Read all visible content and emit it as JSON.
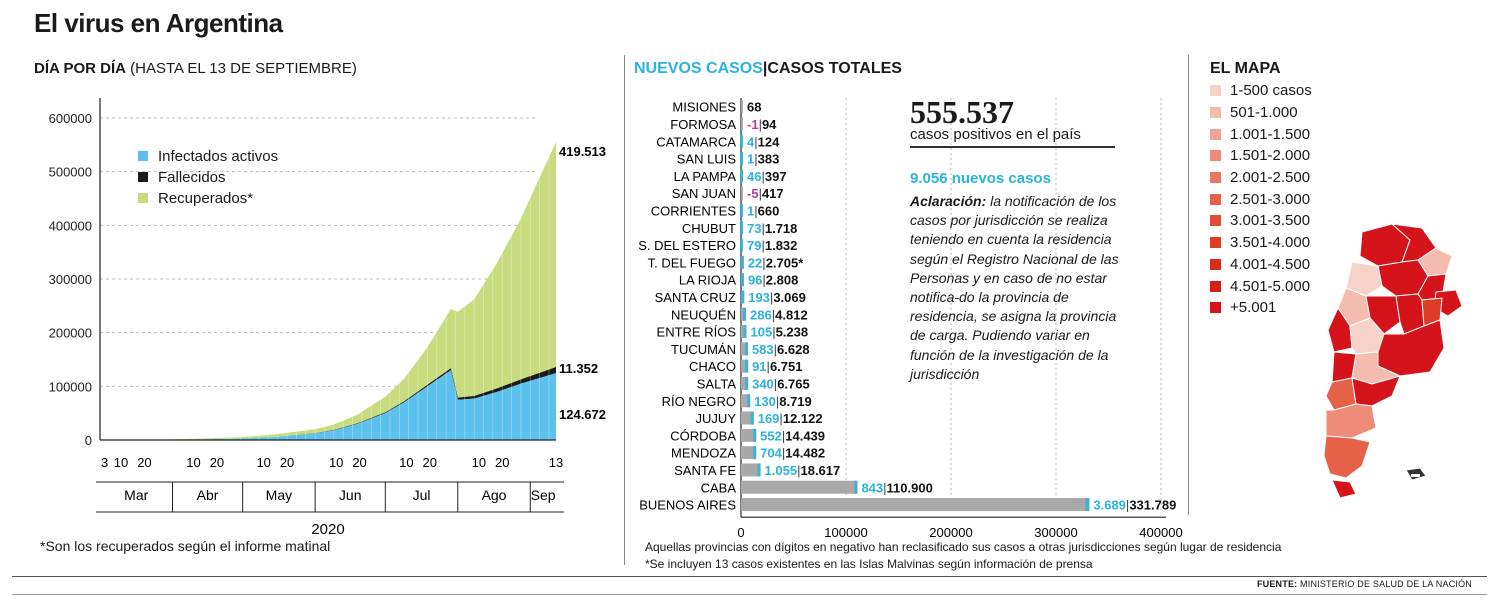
{
  "title": "El virus en Argentina",
  "left_panel": {
    "subtitle_bold": "DÍA POR DÍA",
    "subtitle_rest": " (HASTA EL 13 DE SEPTIEMBRE)",
    "year": "2020",
    "footnote": "*Son los recuperados según el informe matinal"
  },
  "middle_panel": {
    "header_new": "NUEVOS CASOS",
    "header_sep": "|",
    "header_total": "CASOS TOTALES",
    "total_cases": "555.537",
    "total_label": "casos positivos en el país",
    "new_cases": "9.056 nuevos casos",
    "note_bold": "Aclaración:",
    "note_text": " la notificación de los casos por jurisdicción se realiza teniendo en cuenta la residencia según el Registro Nacional de las Personas y en caso de no estar notifica-do la provincia de residencia, se asigna la provincia de carga. Pudiendo variar en función de la investigación de la jurisdicción",
    "footnote1": "Aquellas provincias con dígitos en negativo han reclasificado sus casos a otras jurisdicciones según lugar de residencia",
    "footnote2": "*Se incluyen 13 casos existentes en las Islas Malvinas según información de prensa"
  },
  "map_panel": {
    "header": "EL MAPA",
    "legend": [
      {
        "label": "1-500 casos",
        "color": "#f7d2c9"
      },
      {
        "label": "501-1.000",
        "color": "#f4bcae"
      },
      {
        "label": "1.001-1.500",
        "color": "#f1a493"
      },
      {
        "label": "1.501-2.000",
        "color": "#ed8d79"
      },
      {
        "label": "2.001-2.500",
        "color": "#e9775f"
      },
      {
        "label": "2.501-3.000",
        "color": "#e56248"
      },
      {
        "label": "3.001-3.500",
        "color": "#e14e35"
      },
      {
        "label": "3.501-4.000",
        "color": "#dd3c26"
      },
      {
        "label": "4.001-4.500",
        "color": "#d92d1c"
      },
      {
        "label": "4.501-5.000",
        "color": "#d61f16"
      },
      {
        "label": "+5.001",
        "color": "#d4141a"
      }
    ]
  },
  "source_label": "FUENTE:",
  "source_text": " MINISTERIO DE SALUD DE LA NACIÓN",
  "colors": {
    "active": "#5cc1ec",
    "deaths": "#1a1a1a",
    "recovered": "#c8dc7f",
    "bar_total": "#a9a9a9",
    "bar_new": "#2bb3dd",
    "negative": "#c0399a"
  },
  "chart_data": [
    {
      "type": "area",
      "yticks": [
        "0",
        "100000",
        "200000",
        "300000",
        "400000",
        "500000",
        "600000"
      ],
      "ylim": [
        0,
        600000
      ],
      "xlim": [
        0,
        195
      ],
      "x_tick_labels": [
        "3",
        "10",
        "20",
        "10",
        "20",
        "10",
        "20",
        "10",
        "20",
        "10",
        "20",
        "10",
        "20",
        "13"
      ],
      "x_tick_days": [
        2,
        9,
        19,
        40,
        50,
        70,
        80,
        101,
        111,
        131,
        141,
        162,
        172,
        195
      ],
      "months": [
        "Mar",
        "Abr",
        "May",
        "Jun",
        "Jul",
        "Ago",
        "Sep"
      ],
      "month_bounds": [
        0,
        31,
        61,
        92,
        122,
        153,
        184,
        195
      ],
      "legend": [
        "Infectados activos",
        "Fallecidos",
        "Recuperados*"
      ],
      "series": [
        {
          "name": "Infectados activos",
          "end_label": "124.672",
          "x": [
            0,
            30,
            60,
            75,
            92,
            100,
            110,
            122,
            130,
            140,
            150,
            153,
            160,
            170,
            180,
            190,
            195
          ],
          "values": [
            0,
            500,
            2500,
            5500,
            12000,
            18000,
            30000,
            50000,
            70000,
            100000,
            130000,
            75000,
            77000,
            90000,
            105000,
            118000,
            124672
          ]
        },
        {
          "name": "Fallecidos",
          "end_label": "11.352",
          "x": [
            0,
            30,
            60,
            75,
            92,
            100,
            110,
            122,
            130,
            140,
            150,
            153,
            160,
            170,
            180,
            190,
            195
          ],
          "values": [
            0,
            20,
            100,
            200,
            500,
            700,
            1000,
            1500,
            2000,
            2800,
            3800,
            4000,
            5000,
            6500,
            8000,
            10000,
            11352
          ]
        },
        {
          "name": "Recuperados*",
          "end_label": "419.513",
          "x": [
            0,
            30,
            60,
            75,
            92,
            100,
            110,
            122,
            130,
            140,
            150,
            153,
            160,
            170,
            180,
            190,
            195
          ],
          "values": [
            0,
            300,
            2500,
            5000,
            7500,
            10000,
            16000,
            29000,
            42000,
            70000,
            110000,
            160000,
            180000,
            235000,
            300000,
            380000,
            419513
          ]
        }
      ]
    },
    {
      "type": "bar",
      "xticks": [
        "0",
        "100000",
        "200000",
        "300000",
        "400000"
      ],
      "xlim": [
        0,
        400000
      ],
      "rows": [
        {
          "name": "MISIONES",
          "new": "",
          "total": "68",
          "total_v": 68,
          "new_v": 0
        },
        {
          "name": "FORMOSA",
          "new": "-1",
          "total": "94",
          "total_v": 94,
          "new_v": 0
        },
        {
          "name": "CATAMARCA",
          "new": "4",
          "total": "124",
          "total_v": 124,
          "new_v": 4
        },
        {
          "name": "SAN LUIS",
          "new": "1",
          "total": "383",
          "total_v": 383,
          "new_v": 1
        },
        {
          "name": "LA PAMPA",
          "new": "46",
          "total": "397",
          "total_v": 397,
          "new_v": 46
        },
        {
          "name": "SAN JUAN",
          "new": "-5",
          "total": "417",
          "total_v": 417,
          "new_v": 0
        },
        {
          "name": "CORRIENTES",
          "new": "1",
          "total": "660",
          "total_v": 660,
          "new_v": 1
        },
        {
          "name": "CHUBUT",
          "new": "73",
          "total": "1.718",
          "total_v": 1718,
          "new_v": 73
        },
        {
          "name": "S. DEL ESTERO",
          "new": "79",
          "total": "1.832",
          "total_v": 1832,
          "new_v": 79
        },
        {
          "name": "T. DEL FUEGO",
          "new": "22",
          "total": "2.705*",
          "total_v": 2705,
          "new_v": 22
        },
        {
          "name": "LA RIOJA",
          "new": "96",
          "total": "2.808",
          "total_v": 2808,
          "new_v": 96
        },
        {
          "name": "SANTA CRUZ",
          "new": "193",
          "total": "3.069",
          "total_v": 3069,
          "new_v": 193
        },
        {
          "name": "NEUQUÉN",
          "new": "286",
          "total": "4.812",
          "total_v": 4812,
          "new_v": 286
        },
        {
          "name": "ENTRE RÍOS",
          "new": "105",
          "total": "5.238",
          "total_v": 5238,
          "new_v": 105
        },
        {
          "name": "TUCUMÁN",
          "new": "583",
          "total": "6.628",
          "total_v": 6628,
          "new_v": 583
        },
        {
          "name": "CHACO",
          "new": "91",
          "total": "6.751",
          "total_v": 6751,
          "new_v": 91
        },
        {
          "name": "SALTA",
          "new": "340",
          "total": "6.765",
          "total_v": 6765,
          "new_v": 340
        },
        {
          "name": "RÍO NEGRO",
          "new": "130",
          "total": "8.719",
          "total_v": 8719,
          "new_v": 130
        },
        {
          "name": "JUJUY",
          "new": "169",
          "total": "12.122",
          "total_v": 12122,
          "new_v": 169
        },
        {
          "name": "CÓRDOBA",
          "new": "552",
          "total": "14.439",
          "total_v": 14439,
          "new_v": 552
        },
        {
          "name": "MENDOZA",
          "new": "704",
          "total": "14.482",
          "total_v": 14482,
          "new_v": 704
        },
        {
          "name": "SANTA FE",
          "new": "1.055",
          "total": "18.617",
          "total_v": 18617,
          "new_v": 1055
        },
        {
          "name": "CABA",
          "new": "843",
          "total": "110.900",
          "total_v": 110900,
          "new_v": 843
        },
        {
          "name": "BUENOS AIRES",
          "new": "3.689",
          "total": "331.789",
          "total_v": 331789,
          "new_v": 3689
        }
      ]
    }
  ]
}
